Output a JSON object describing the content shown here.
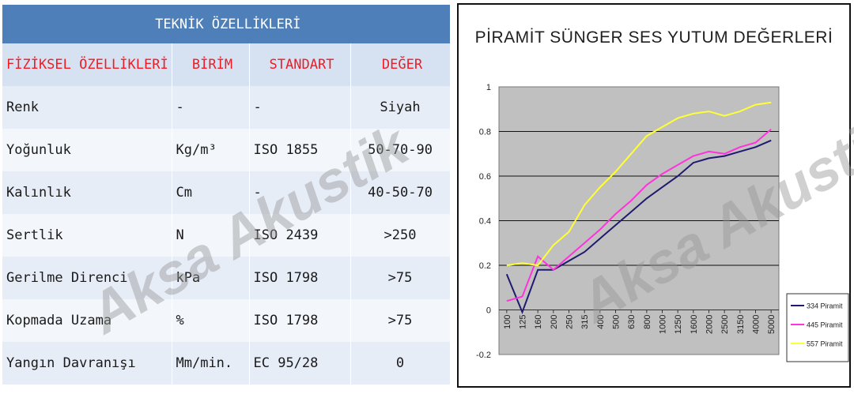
{
  "table": {
    "title": "TEKNİK ÖZELLİKLERİ",
    "headers": [
      "FİZİKSEL ÖZELLİKLERİ",
      "BİRİM",
      "STANDART",
      "DEĞER"
    ],
    "rows": [
      [
        "Renk",
        "-",
        "-",
        "Siyah"
      ],
      [
        "Yoğunluk",
        "Kg/m³",
        "ISO 1855",
        "50-70-90"
      ],
      [
        "Kalınlık",
        "Cm",
        "-",
        "40-50-70"
      ],
      [
        "Sertlik",
        "N",
        "ISO 2439",
        ">250"
      ],
      [
        "Gerilme Direnci",
        "kPa",
        "ISO 1798",
        ">75"
      ],
      [
        "Kopmada Uzama",
        "%",
        "ISO 1798",
        ">75"
      ],
      [
        "Yangın Davranışı",
        "Mm/min.",
        "EC 95/28",
        "0"
      ]
    ]
  },
  "watermark": "Aksa Akustik",
  "colors": {
    "table_title_bg": "#4e7fb8",
    "table_header_bg": "#d6e2f1",
    "table_header_text": "#ee1c25",
    "plot_bg": "#c0c0c0",
    "series_334": "#1f1a6e",
    "series_445": "#ff33dd",
    "series_557": "#ffff33"
  },
  "chart_data": {
    "type": "line",
    "title": "PİRAMİT SÜNGER SES YUTUM DEĞERLERİ",
    "categories": [
      "100",
      "125",
      "160",
      "200",
      "250",
      "315",
      "400",
      "500",
      "630",
      "800",
      "1000",
      "1250",
      "1600",
      "2000",
      "2500",
      "3150",
      "4000",
      "5000"
    ],
    "ylim": [
      -0.2,
      1
    ],
    "yticks": [
      "1",
      "0.8",
      "0.6",
      "0.4",
      "0.2",
      "0",
      "-0.2"
    ],
    "grid": true,
    "legend_position": "right-bottom",
    "series": [
      {
        "name": "334 Piramit",
        "color": "#1f1a6e",
        "values": [
          0.16,
          -0.01,
          0.18,
          0.18,
          0.22,
          0.26,
          0.32,
          0.38,
          0.44,
          0.5,
          0.55,
          0.6,
          0.66,
          0.68,
          0.69,
          0.71,
          0.73,
          0.76
        ]
      },
      {
        "name": "445 Piramit",
        "color": "#ff33dd",
        "values": [
          0.04,
          0.06,
          0.24,
          0.18,
          0.24,
          0.3,
          0.36,
          0.43,
          0.49,
          0.56,
          0.61,
          0.65,
          0.69,
          0.71,
          0.7,
          0.73,
          0.75,
          0.81
        ]
      },
      {
        "name": "557 Piramit",
        "color": "#ffff33",
        "values": [
          0.2,
          0.21,
          0.2,
          0.29,
          0.35,
          0.47,
          0.55,
          0.62,
          0.7,
          0.78,
          0.82,
          0.86,
          0.88,
          0.89,
          0.87,
          0.89,
          0.92,
          0.93
        ]
      }
    ]
  }
}
